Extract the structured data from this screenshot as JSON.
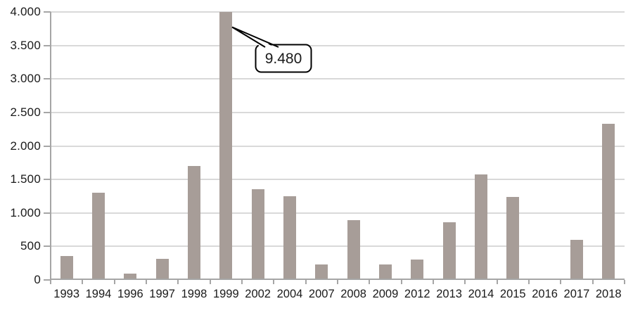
{
  "chart_data": {
    "type": "bar",
    "title": "",
    "xlabel": "",
    "ylabel": "",
    "categories": [
      "1993",
      "1994",
      "1996",
      "1997",
      "1998",
      "1999",
      "2002",
      "2004",
      "2007",
      "2008",
      "2009",
      "2012",
      "2013",
      "2014",
      "2015",
      "2016",
      "2017",
      "2018"
    ],
    "values": [
      360,
      1300,
      90,
      310,
      1700,
      9480,
      1350,
      1250,
      230,
      890,
      230,
      300,
      860,
      1580,
      1240,
      0,
      600,
      2330
    ],
    "ylim": [
      0,
      4000
    ],
    "ytick_interval": 500,
    "ytick_labels": [
      "0",
      "500",
      "1.000",
      "1.500",
      "2.000",
      "2.500",
      "3.000",
      "3.500",
      "4.000"
    ],
    "grid": true,
    "legend_position": "none",
    "annotation": {
      "label": "9.480",
      "target_category": "1999",
      "clipped_at_axis_max": true
    }
  },
  "colors": {
    "bar": "#a79d98",
    "gridline": "#d9d9d9",
    "axis": "#a6a6a6",
    "text": "#1a1a1a",
    "callout_fill": "#ffffff",
    "callout_border": "#000000",
    "background": "#ffffff"
  }
}
